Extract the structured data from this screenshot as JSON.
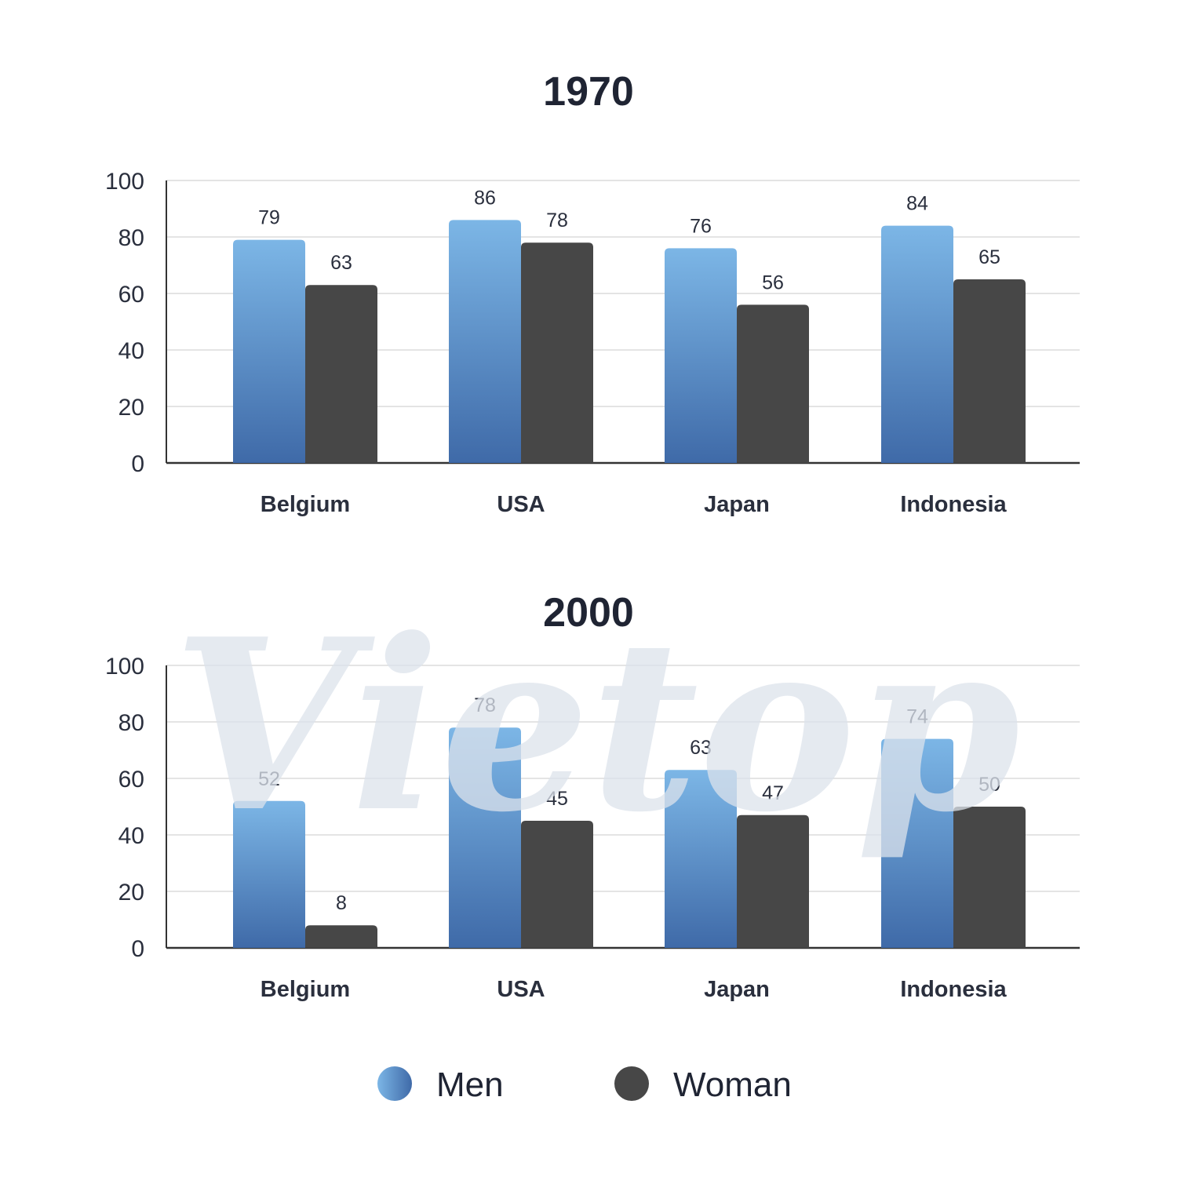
{
  "watermark": "Vietop",
  "colors": {
    "men_top": "#7cb6e6",
    "men_bottom": "#3f6aa8",
    "woman": "#474747",
    "grid": "#c8c8c8",
    "axis": "#333333"
  },
  "legend": [
    {
      "label": "Men",
      "swatch": "men-gradient"
    },
    {
      "label": "Woman",
      "swatch": "woman-solid"
    }
  ],
  "chart_data": [
    {
      "type": "bar",
      "title": "1970",
      "categories": [
        "Belgium",
        "USA",
        "Japan",
        "Indonesia"
      ],
      "series": [
        {
          "name": "Men",
          "values": [
            79,
            86,
            76,
            84
          ]
        },
        {
          "name": "Woman",
          "values": [
            63,
            78,
            56,
            65
          ]
        }
      ],
      "xlabel": "",
      "ylabel": "",
      "ylim": [
        0,
        100
      ],
      "yticks": [
        0,
        20,
        40,
        60,
        80,
        100
      ],
      "grid": true
    },
    {
      "type": "bar",
      "title": "2000",
      "categories": [
        "Belgium",
        "USA",
        "Japan",
        "Indonesia"
      ],
      "series": [
        {
          "name": "Men",
          "values": [
            52,
            78,
            63,
            74
          ]
        },
        {
          "name": "Woman",
          "values": [
            8,
            45,
            47,
            50
          ]
        }
      ],
      "xlabel": "",
      "ylabel": "",
      "ylim": [
        0,
        100
      ],
      "yticks": [
        0,
        20,
        40,
        60,
        80,
        100
      ],
      "grid": true
    }
  ]
}
